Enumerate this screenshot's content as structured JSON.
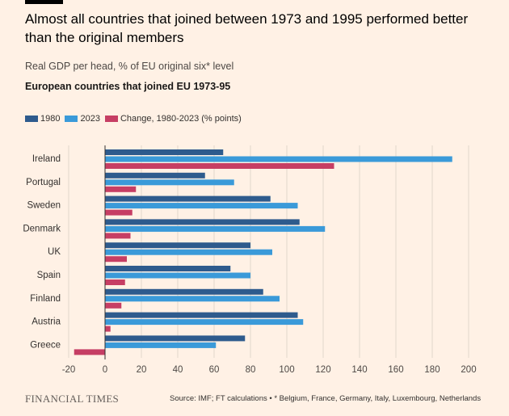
{
  "header": {
    "title": "Almost all countries that joined between 1973 and 1995 performed better than the original members",
    "subtitle": "Real GDP per head, % of EU original six* level",
    "subhead": "European countries that joined EU 1973-95"
  },
  "footer": {
    "brand": "FINANCIAL TIMES",
    "source": "Source: IMF; FT calculations • * Belgium, France, Germany, Italy, Luxembourg, Netherlands"
  },
  "colors": {
    "s1980": "#2e5b8d",
    "s2023": "#3a9ad9",
    "change": "#c63e64",
    "grid": "#e2d6cc",
    "zero": "#33302e"
  },
  "chart_data": {
    "type": "bar",
    "orientation": "horizontal",
    "categories": [
      "Ireland",
      "Portugal",
      "Sweden",
      "Denmark",
      "UK",
      "Spain",
      "Finland",
      "Austria",
      "Greece"
    ],
    "series": [
      {
        "name": "1980",
        "values": [
          65,
          55,
          91,
          107,
          80,
          69,
          87,
          106,
          77
        ]
      },
      {
        "name": "2023",
        "values": [
          191,
          71,
          106,
          121,
          92,
          80,
          96,
          109,
          61
        ]
      },
      {
        "name": "Change, 1980-2023 (% points)",
        "values": [
          126,
          17,
          15,
          14,
          12,
          11,
          9,
          3,
          -17
        ]
      }
    ],
    "xlim": [
      -20,
      200
    ],
    "xticks": [
      -20,
      0,
      20,
      40,
      60,
      80,
      100,
      120,
      140,
      160,
      180,
      200
    ],
    "grid": true,
    "legend": "top-left"
  }
}
